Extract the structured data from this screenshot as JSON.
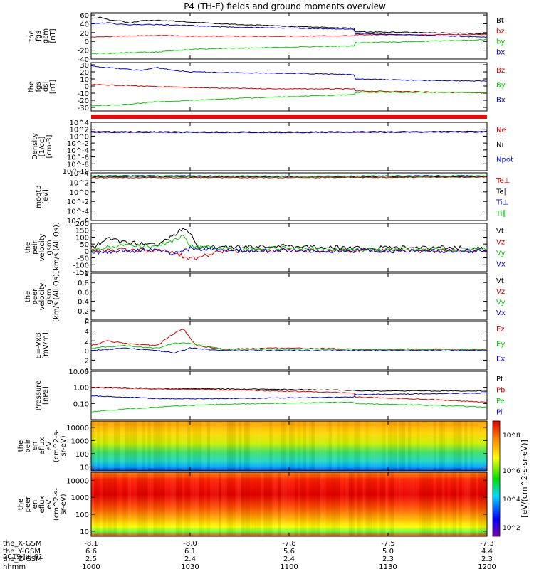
{
  "title": "P4 (TH-E) fields and ground moments overview",
  "date": "2019 Jul 01",
  "colors": {
    "black": "#000000",
    "red": "#e00000",
    "green": "#00d000",
    "blue": "#0000dd"
  },
  "colorbar_label": "[eV/(cm^2-s-sr-eV)]",
  "chart_data": [
    {
      "type": "line",
      "id": "fgs_gsm",
      "ylabel": [
        "the",
        "fgs",
        "gsm",
        "[nT]"
      ],
      "yticks": [
        -40,
        -20,
        0,
        20,
        40,
        60
      ],
      "ylim": [
        -40,
        65
      ],
      "yscale": "linear",
      "series": [
        {
          "name": "Bt",
          "color": "#000000",
          "x": [
            1000,
            1003,
            1006,
            1009,
            1012,
            1015,
            1020,
            1025,
            1030,
            1040,
            1050,
            1060,
            1080,
            1100,
            1120,
            1140,
            1160,
            1180,
            1200
          ],
          "y": [
            52,
            55,
            48,
            46,
            42,
            47,
            48,
            46,
            44,
            40,
            37,
            34,
            30,
            26,
            22,
            20,
            18,
            17,
            16
          ]
        },
        {
          "name": "bz",
          "color": "#e00000",
          "x": [
            1000,
            1010,
            1020,
            1030,
            1040,
            1060,
            1080,
            1100,
            1120,
            1140,
            1160,
            1180,
            1200
          ],
          "y": [
            10,
            12,
            14,
            12,
            12,
            12,
            13,
            14,
            15,
            15,
            16,
            16,
            17
          ]
        },
        {
          "name": "by",
          "color": "#00d000",
          "x": [
            1000,
            1005,
            1010,
            1020,
            1030,
            1040,
            1060,
            1080,
            1100,
            1120,
            1140,
            1160,
            1180,
            1200
          ],
          "y": [
            -28,
            -27,
            -26,
            -24,
            -18,
            -16,
            -13,
            -10,
            -6,
            -3,
            0,
            4,
            8,
            13
          ]
        },
        {
          "name": "bx",
          "color": "#0000dd",
          "x": [
            1000,
            1005,
            1010,
            1020,
            1030,
            1040,
            1060,
            1080,
            1100,
            1120,
            1140,
            1160,
            1180,
            1200
          ],
          "y": [
            40,
            42,
            38,
            38,
            36,
            33,
            30,
            28,
            22,
            18,
            14,
            10,
            6,
            2
          ]
        }
      ]
    },
    {
      "type": "line",
      "id": "fgs_dsl",
      "ylabel": [
        "the",
        "fgs",
        "dsl",
        "[nT]"
      ],
      "yticks": [
        -30,
        -20,
        -10,
        0,
        10,
        20,
        30
      ],
      "ylim": [
        -35,
        33
      ],
      "yscale": "linear",
      "series": [
        {
          "name": "Bz",
          "color": "#e00000",
          "x": [
            1000,
            1010,
            1020,
            1030,
            1040,
            1060,
            1080,
            1100,
            1120,
            1140,
            1160,
            1180,
            1200
          ],
          "y": [
            2,
            1,
            -1,
            -2,
            -3,
            -4,
            -4,
            -6,
            -7,
            -8,
            -10,
            -12,
            -14
          ]
        },
        {
          "name": "By",
          "color": "#00d000",
          "x": [
            1000,
            1010,
            1020,
            1030,
            1040,
            1060,
            1080,
            1100,
            1120,
            1140,
            1160,
            1180,
            1200
          ],
          "y": [
            -28,
            -26,
            -22,
            -20,
            -18,
            -15,
            -12,
            -10,
            -9,
            -9,
            -9,
            -10,
            -10
          ]
        },
        {
          "name": "Bx",
          "color": "#0000dd",
          "x": [
            1000,
            1005,
            1010,
            1015,
            1020,
            1025,
            1030,
            1040,
            1060,
            1080,
            1100,
            1120,
            1140,
            1160,
            1180,
            1200
          ],
          "y": [
            28,
            26,
            24,
            22,
            26,
            22,
            20,
            19,
            18,
            16,
            14,
            10,
            8,
            7,
            6,
            2
          ]
        }
      ]
    },
    {
      "type": "line",
      "id": "density",
      "ylabel": [
        "Density",
        "[1/cc]",
        "[cm-3]"
      ],
      "yticks": [
        "10^4",
        "10^2",
        "10^0",
        "10^-2",
        "10^-4",
        "10^-6",
        "10^-8",
        "10^-10"
      ],
      "ylim": [
        -10,
        4
      ],
      "yscale": "log10",
      "series": [
        {
          "name": "Ne",
          "color": "#e00000",
          "x": [
            1000,
            1100,
            1200
          ],
          "y": [
            1.2,
            1.1,
            1.3
          ]
        },
        {
          "name": "Ni",
          "color": "#000000",
          "x": [
            1000,
            1100,
            1200
          ],
          "y": [
            1.3,
            1.2,
            1.4
          ]
        },
        {
          "name": "Npot",
          "color": "#0000dd",
          "x": [
            1000,
            1100,
            1200
          ],
          "y": [
            1.1,
            1.05,
            1.2
          ]
        }
      ]
    },
    {
      "type": "line",
      "id": "temperature",
      "ylabel": [
        "moqt3",
        "[eV]"
      ],
      "yticks": [
        "10^4",
        "10^2",
        "10^0",
        "10^-2",
        "10^-4",
        "10^-6"
      ],
      "ylim": [
        -6,
        4
      ],
      "yscale": "log10",
      "series": [
        {
          "name": "Te⊥",
          "color": "#e00000",
          "x": [
            1000,
            1100,
            1200
          ],
          "y": [
            3.0,
            3.0,
            3.1
          ]
        },
        {
          "name": "Te∥",
          "color": "#000000",
          "x": [
            1000,
            1100,
            1200
          ],
          "y": [
            3.2,
            3.2,
            3.2
          ]
        },
        {
          "name": "Ti⊥",
          "color": "#0000dd",
          "x": [
            1000,
            1100,
            1200
          ],
          "y": [
            3.4,
            3.3,
            3.4
          ]
        },
        {
          "name": "Ti∥",
          "color": "#00d000",
          "x": [
            1000,
            1100,
            1200
          ],
          "y": [
            3.3,
            3.25,
            3.3
          ]
        }
      ]
    },
    {
      "type": "line",
      "id": "peir_velocity",
      "ylabel": [
        "the",
        "peir",
        "velocity",
        "gsm",
        "[km/s (All Qs)]"
      ],
      "yticks": [
        -150,
        -100,
        -50,
        0,
        50,
        100,
        150,
        200
      ],
      "ylim": [
        -150,
        200
      ],
      "yscale": "linear",
      "series": [
        {
          "name": "Vt",
          "color": "#000000",
          "x": [
            1000,
            1005,
            1010,
            1020,
            1025,
            1028,
            1030,
            1032,
            1040,
            1060,
            1080,
            1100,
            1120,
            1140,
            1160,
            1180,
            1200
          ],
          "y": [
            20,
            90,
            60,
            50,
            110,
            170,
            130,
            30,
            25,
            35,
            20,
            30,
            20,
            25,
            20,
            25,
            20
          ]
        },
        {
          "name": "Vz",
          "color": "#e00000",
          "x": [
            1000,
            1010,
            1020,
            1025,
            1030,
            1040,
            1060,
            1080,
            1100,
            1120,
            1140,
            1160,
            1180,
            1200
          ],
          "y": [
            0,
            10,
            0,
            -10,
            -60,
            0,
            5,
            0,
            0,
            5,
            0,
            0,
            0,
            0
          ]
        },
        {
          "name": "Vy",
          "color": "#00d000",
          "x": [
            1000,
            1010,
            1020,
            1025,
            1028,
            1030,
            1040,
            1060,
            1080,
            1100,
            1120,
            1140,
            1160,
            1180,
            1200
          ],
          "y": [
            10,
            40,
            30,
            80,
            110,
            40,
            15,
            20,
            10,
            15,
            10,
            10,
            10,
            10,
            10
          ]
        },
        {
          "name": "Vx",
          "color": "#0000dd",
          "x": [
            1000,
            1010,
            1020,
            1025,
            1030,
            1040,
            1060,
            1080,
            1100,
            1120,
            1140,
            1160,
            1180,
            1200
          ],
          "y": [
            -10,
            0,
            10,
            -20,
            20,
            5,
            0,
            0,
            -5,
            0,
            0,
            0,
            0,
            0
          ]
        }
      ]
    },
    {
      "type": "line",
      "id": "peer_velocity",
      "ylabel": [
        "the",
        "peer",
        "velocity",
        "gsm",
        "[km/s (All Qs)]"
      ],
      "yticks": [
        0.0,
        0.2,
        0.4,
        0.6,
        0.8,
        1.0
      ],
      "ylim": [
        0,
        1
      ],
      "yscale": "linear",
      "series": [
        {
          "name": "Vt",
          "color": "#000000",
          "x": [],
          "y": []
        },
        {
          "name": "Vz",
          "color": "#e00000",
          "x": [],
          "y": []
        },
        {
          "name": "Vy",
          "color": "#00d000",
          "x": [],
          "y": []
        },
        {
          "name": "Vx",
          "color": "#0000dd",
          "x": [],
          "y": []
        }
      ]
    },
    {
      "type": "line",
      "id": "efield",
      "ylabel": [
        "E=-VxB",
        "[mV/m]"
      ],
      "yticks": [
        -4,
        -2,
        0,
        2,
        4,
        6
      ],
      "ylim": [
        -4,
        6
      ],
      "yscale": "linear",
      "series": [
        {
          "name": "Ez",
          "color": "#e00000",
          "x": [
            1000,
            1005,
            1010,
            1020,
            1025,
            1028,
            1030,
            1032,
            1040,
            1060,
            1080,
            1100,
            1120,
            1140,
            1160,
            1180,
            1200
          ],
          "y": [
            1,
            2,
            1.5,
            1,
            3.5,
            4.5,
            2.5,
            1,
            0.3,
            0.5,
            0.3,
            0.5,
            0.2,
            0.3,
            0.2,
            0.2,
            0.2
          ]
        },
        {
          "name": "Ey",
          "color": "#00d000",
          "x": [
            1000,
            1010,
            1020,
            1025,
            1030,
            1040,
            1060,
            1080,
            1100,
            1120,
            1140,
            1160,
            1180,
            1200
          ],
          "y": [
            0.5,
            1,
            0.5,
            1.5,
            1.5,
            0.2,
            0.3,
            0.2,
            0.3,
            0.2,
            0.2,
            0.2,
            0.2,
            0.2
          ]
        },
        {
          "name": "Ex",
          "color": "#0000dd",
          "x": [
            1000,
            1010,
            1020,
            1025,
            1030,
            1040,
            1060,
            1080,
            1100,
            1120,
            1140,
            1160,
            1180,
            1200
          ],
          "y": [
            0,
            0.5,
            0,
            -0.5,
            0.5,
            0,
            0,
            0,
            0,
            0,
            0,
            0,
            0,
            0
          ]
        }
      ]
    },
    {
      "type": "line",
      "id": "pressure",
      "ylabel": [
        "Pressure",
        "[nPa]"
      ],
      "yticks": [
        0.1,
        1.0,
        10.0
      ],
      "ytick_labels": [
        "0.10",
        "1.00",
        "10.00"
      ],
      "ylim": [
        0.01,
        10
      ],
      "yscale": "log10",
      "series": [
        {
          "name": "Pt",
          "color": "#000000",
          "x": [
            1000,
            1020,
            1040,
            1080,
            1120,
            1160,
            1200
          ],
          "y": [
            1.0,
            0.9,
            0.8,
            0.65,
            0.6,
            0.6,
            0.65
          ]
        },
        {
          "name": "Pb",
          "color": "#e00000",
          "x": [
            1000,
            1020,
            1040,
            1080,
            1120,
            1160,
            1200
          ],
          "y": [
            0.95,
            0.8,
            0.7,
            0.45,
            0.25,
            0.12,
            0.1
          ]
        },
        {
          "name": "Pe",
          "color": "#00d000",
          "x": [
            1000,
            1020,
            1040,
            1080,
            1120,
            1160,
            1180,
            1200
          ],
          "y": [
            0.03,
            0.06,
            0.09,
            0.12,
            0.1,
            0.06,
            0.05,
            0.1
          ]
        },
        {
          "name": "Pi",
          "color": "#0000dd",
          "x": [
            1000,
            1020,
            1040,
            1080,
            1120,
            1160,
            1200
          ],
          "y": [
            0.3,
            0.2,
            0.2,
            0.25,
            0.35,
            0.45,
            0.55
          ]
        }
      ]
    },
    {
      "type": "heatmap",
      "id": "peir_spec",
      "ylabel": [
        "the",
        "peir",
        "en",
        "eflux",
        "eV",
        "(cm^2-s-",
        "sr-eV)"
      ],
      "yticks": [
        10,
        100,
        1000,
        10000
      ],
      "ytick_labels": [
        "10",
        "100",
        "1000",
        "10000"
      ],
      "ylim": [
        5,
        30000
      ],
      "yscale": "log10"
    },
    {
      "type": "heatmap",
      "id": "peer_spec",
      "ylabel": [
        "the",
        "peer",
        "en",
        "eflux",
        "eV",
        "(cm^2-s-",
        "sr-eV)"
      ],
      "yticks": [
        10,
        100,
        1000,
        10000
      ],
      "ytick_labels": [
        "10",
        "100",
        "1000",
        "10000"
      ],
      "ylim": [
        5,
        30000
      ],
      "yscale": "log10"
    }
  ],
  "colorbar_ticks": [
    "10^2",
    "10^4",
    "10^6",
    "10^8"
  ],
  "xaxis": {
    "row_labels": [
      "the_X-GSM",
      "the_Y-GSM",
      "the_Z-GSM",
      "hhmm"
    ],
    "ticks": [
      {
        "x": 1000,
        "vals": [
          "-8.1",
          "6.6",
          "2.5",
          "1000"
        ]
      },
      {
        "x": 1030,
        "vals": [
          "-8.0",
          "6.1",
          "2.4",
          "1030"
        ]
      },
      {
        "x": 1100,
        "vals": [
          "-7.8",
          "5.6",
          "2.4",
          "1100"
        ]
      },
      {
        "x": 1130,
        "vals": [
          "-7.5",
          "5.0",
          "2.3",
          "1130"
        ]
      },
      {
        "x": 1200,
        "vals": [
          "-7.3",
          "4.4",
          "2.3",
          "1200"
        ]
      }
    ]
  }
}
